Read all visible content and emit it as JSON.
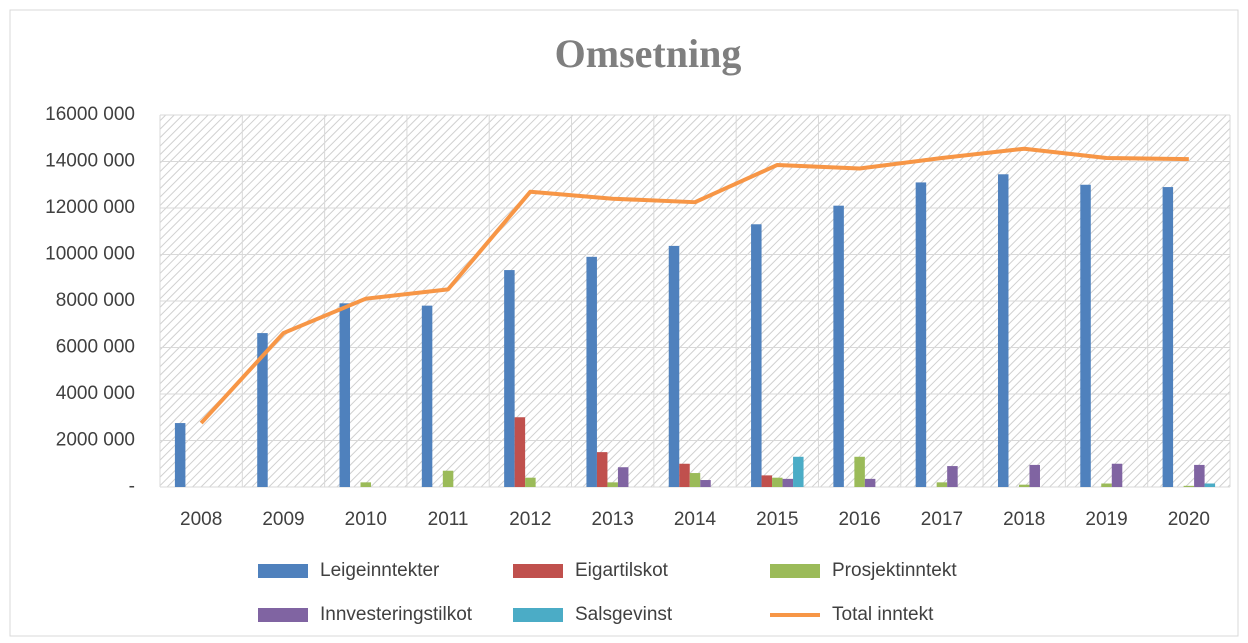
{
  "chart_data": {
    "type": "bar",
    "title": "Omsetning",
    "categories": [
      "2008",
      "2009",
      "2010",
      "2011",
      "2012",
      "2013",
      "2014",
      "2015",
      "2016",
      "2017",
      "2018",
      "2019",
      "2020"
    ],
    "series": [
      {
        "name": "Leigeinntekter",
        "color": "#4f81bd",
        "values": [
          2750000,
          6620000,
          7900000,
          7800000,
          9330000,
          9900000,
          10370000,
          11300000,
          12100000,
          13100000,
          13450000,
          13000000,
          12900000
        ]
      },
      {
        "name": "Eigartilskot",
        "color": "#c0504d",
        "values": [
          0,
          0,
          0,
          0,
          3000000,
          1500000,
          1000000,
          500000,
          0,
          0,
          0,
          0,
          0
        ]
      },
      {
        "name": "Prosjektinntekt",
        "color": "#9bbb59",
        "values": [
          0,
          0,
          200000,
          700000,
          400000,
          200000,
          600000,
          400000,
          1300000,
          200000,
          100000,
          150000,
          50000
        ]
      },
      {
        "name": "Innvesteringstilkot",
        "color": "#8064a2",
        "values": [
          0,
          0,
          0,
          0,
          0,
          850000,
          300000,
          350000,
          350000,
          900000,
          950000,
          1000000,
          950000
        ]
      },
      {
        "name": "Salsgevinst",
        "color": "#4bacc6",
        "values": [
          0,
          0,
          0,
          0,
          0,
          0,
          0,
          1300000,
          0,
          0,
          0,
          0,
          150000
        ]
      },
      {
        "name": "Total inntekt",
        "color": "#f79646",
        "type": "line",
        "values": [
          2750000,
          6620000,
          8100000,
          8500000,
          12700000,
          12400000,
          12250000,
          13850000,
          13700000,
          14150000,
          14550000,
          14150000,
          14100000
        ]
      }
    ],
    "ylim": [
      0,
      16000000
    ],
    "yticks": [
      {
        "value": 0,
        "label": "-"
      },
      {
        "value": 2000000,
        "label": "2000 000"
      },
      {
        "value": 4000000,
        "label": "4000 000"
      },
      {
        "value": 6000000,
        "label": "6000 000"
      },
      {
        "value": 8000000,
        "label": "8000 000"
      },
      {
        "value": 10000000,
        "label": "10000 000"
      },
      {
        "value": 12000000,
        "label": "12000 000"
      },
      {
        "value": 14000000,
        "label": "14000 000"
      },
      {
        "value": 16000000,
        "label": "16000 000"
      }
    ],
    "grid": true
  }
}
